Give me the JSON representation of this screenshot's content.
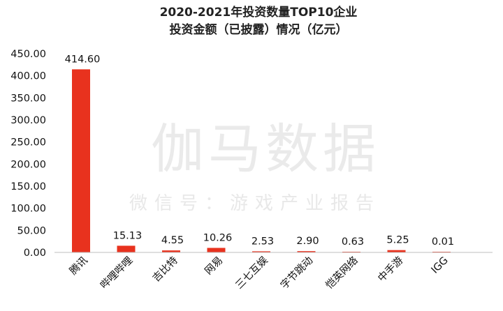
{
  "chart_data": {
    "type": "bar",
    "title_lines": [
      "2020-2021年投资数量TOP10企业",
      "投资金额（已披露）情况（亿元）"
    ],
    "categories": [
      "腾讯",
      "哔哩哔哩",
      "吉比特",
      "网易",
      "三七互娱",
      "字节跳动",
      "恺英网络",
      "中手游",
      "IGG"
    ],
    "values": [
      414.6,
      15.13,
      4.55,
      10.26,
      2.53,
      2.9,
      0.63,
      5.25,
      0.01
    ],
    "value_labels": [
      "414.60",
      "15.13",
      "4.55",
      "10.26",
      "2.53",
      "2.90",
      "0.63",
      "5.25",
      "0.01"
    ],
    "y_ticks": [
      "0.00",
      "50.00",
      "100.00",
      "150.00",
      "200.00",
      "250.00",
      "300.00",
      "350.00",
      "400.00",
      "450.00"
    ],
    "ylim": [
      0,
      450
    ],
    "xlabel": "",
    "ylabel": "",
    "grid": false,
    "bar_color": "#e8321e"
  },
  "watermark": {
    "main": "伽马数据",
    "sub": "微信号：游戏产业报告"
  }
}
